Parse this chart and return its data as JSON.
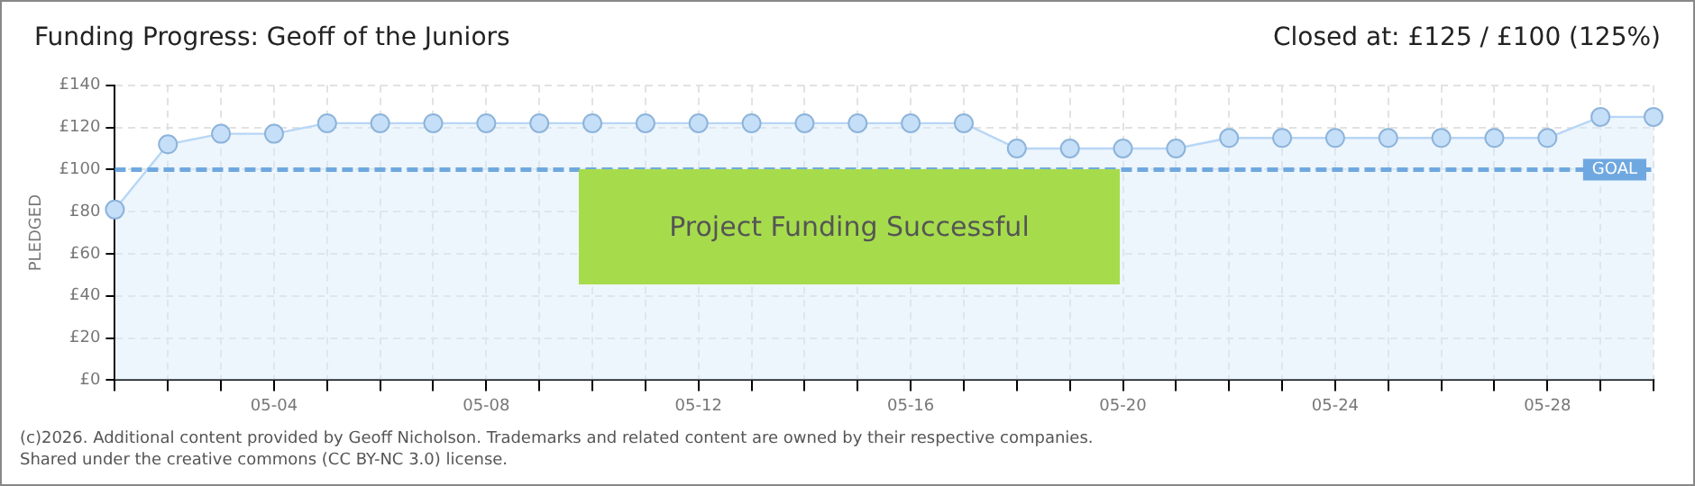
{
  "chart_data": {
    "type": "area",
    "title": "Funding Progress: Geoff of the Juniors",
    "subtitle": "Closed at:  £125 / £100 (125%)",
    "ylabel": "PLEDGED",
    "categories": [
      null,
      null,
      null,
      "05-04",
      null,
      null,
      null,
      "05-08",
      null,
      null,
      null,
      "05-12",
      null,
      null,
      null,
      "05-16",
      null,
      null,
      null,
      "05-20",
      null,
      null,
      null,
      "05-24",
      null,
      null,
      null,
      "05-28",
      null,
      null
    ],
    "series": [
      {
        "color": "#b7d6f5",
        "values": [
          81,
          112,
          117,
          117,
          122,
          122,
          122,
          122,
          122,
          122,
          122,
          122,
          122,
          122,
          122,
          122,
          122,
          110,
          110,
          110,
          110,
          115,
          115,
          115,
          115,
          115,
          115,
          115,
          125,
          125
        ]
      }
    ],
    "ylim": [
      0,
      140
    ],
    "yticks": [
      {
        "value": 0,
        "label": "£0"
      },
      {
        "value": 20,
        "label": "£20"
      },
      {
        "value": 40,
        "label": "£40"
      },
      {
        "value": 60,
        "label": "£60"
      },
      {
        "value": 80,
        "label": "£80"
      },
      {
        "value": 100,
        "label": "£100"
      },
      {
        "value": 120,
        "label": "£120"
      },
      {
        "value": 140,
        "label": "£140"
      }
    ],
    "ref_lines": [
      {
        "axis": "y",
        "value": 100,
        "label": "GOAL",
        "color": "#6fa8e0",
        "line_style": "dashed"
      }
    ],
    "annotations": [
      "Project Funding Successful",
      "(c)2026. Additional content provided by Geoff Nicholson. Trademarks and related content are owned by their respective companies.",
      "Shared under the creative commons (CC BY-NC 3.0) license."
    ],
    "grid": true,
    "legend": false,
    "marker": "circle",
    "line_style": "solid"
  }
}
